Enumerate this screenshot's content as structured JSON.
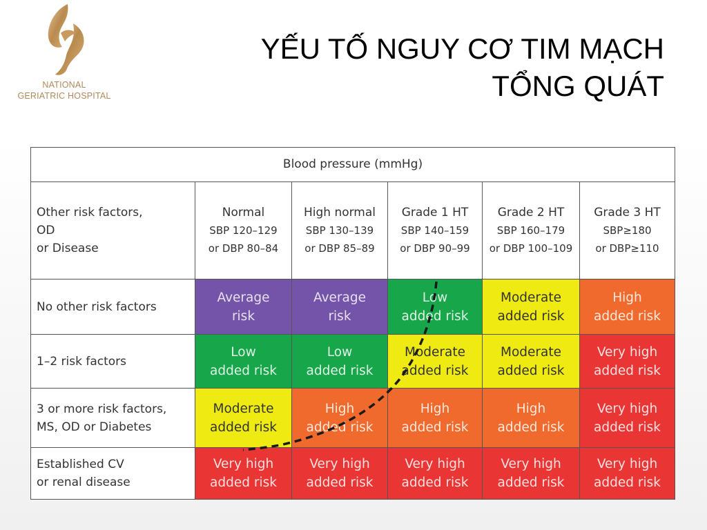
{
  "logo": {
    "line1": "NATIONAL",
    "line2": "GERIATRIC HOSPITAL",
    "color": "#b0895a"
  },
  "title": {
    "line1": "YẾU TỐ NGUY CƠ TIM MẠCH",
    "line2": "TỔNG QUÁT"
  },
  "table": {
    "header": "Blood pressure (mmHg)",
    "corner": [
      "Other risk factors,",
      "OD",
      "or Disease"
    ],
    "columns": [
      {
        "name": "Normal",
        "sbp": "SBP 120–129",
        "dbp": "or DBP 80–84"
      },
      {
        "name": "High normal",
        "sbp": "SBP 130–139",
        "dbp": "or DBP 85–89"
      },
      {
        "name": "Grade 1 HT",
        "sbp": "SBP 140–159",
        "dbp": "or DBP 90–99"
      },
      {
        "name": "Grade 2 HT",
        "sbp": "SBP 160–179",
        "dbp": "or DBP 100–109"
      },
      {
        "name": "Grade 3 HT",
        "sbp": "SBP≥180",
        "dbp": "or DBP≥110"
      }
    ],
    "rows": [
      {
        "label": [
          "No other risk factors"
        ],
        "cells": [
          [
            "Average",
            "risk"
          ],
          [
            "Average",
            "risk"
          ],
          [
            "Low",
            "added risk"
          ],
          [
            "Moderate",
            "added risk"
          ],
          [
            "High",
            "added risk"
          ]
        ]
      },
      {
        "label": [
          "1–2 risk factors"
        ],
        "cells": [
          [
            "Low",
            "added risk"
          ],
          [
            "Low",
            "added risk"
          ],
          [
            "Moderate",
            "added risk"
          ],
          [
            "Moderate",
            "added risk"
          ],
          [
            "Very high",
            "added risk"
          ]
        ]
      },
      {
        "label": [
          "3 or more risk factors,",
          "MS, OD or Diabetes"
        ],
        "cells": [
          [
            "Moderate",
            "added risk"
          ],
          [
            "High",
            "added risk"
          ],
          [
            "High",
            "added risk"
          ],
          [
            "High",
            "added risk"
          ],
          [
            "Very high",
            "added risk"
          ]
        ]
      },
      {
        "label": [
          "Established CV",
          "or renal disease"
        ],
        "cells": [
          [
            "Very high",
            "added risk"
          ],
          [
            "Very high",
            "added risk"
          ],
          [
            "Very high",
            "added risk"
          ],
          [
            "Very high",
            "added risk"
          ],
          [
            "Very high",
            "added risk"
          ]
        ]
      }
    ]
  },
  "colors": {
    "average": "#7454a8",
    "low": "#17a64a",
    "moderate": "#eeea12",
    "high": "#ef6a2c",
    "very_high": "#ea3535"
  }
}
